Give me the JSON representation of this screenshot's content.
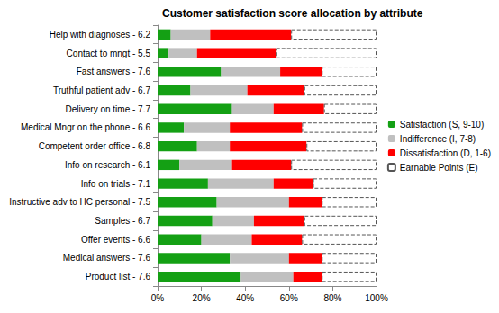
{
  "chart_data": {
    "type": "bar",
    "title": "Customer satisfaction score allocation by attribute",
    "orientation": "horizontal",
    "stacked": true,
    "grid": false,
    "legend": "right",
    "categories": [
      "Help with diagnoses - 6.2",
      "Contact to mngt - 5.5",
      "Fast answers - 7.6",
      "Truthful patient adv - 6.7",
      "Delivery on time - 7.7",
      "Medical Mngr on the phone - 6.6",
      "Competent order office - 6.8",
      "Info on research - 6.1",
      "Info on trials - 7.1",
      "Instructive adv to HC personal - 7.5",
      "Samples - 6.7",
      "Offer events - 6.6",
      "Medical answers - 7.6",
      "Product list - 7.6"
    ],
    "series": [
      {
        "name": "Satisfaction (S, 9-10)",
        "color": "#14a014",
        "values": [
          6,
          5,
          29,
          15,
          34,
          12,
          18,
          10,
          23,
          27,
          25,
          20,
          33,
          38
        ]
      },
      {
        "name": "Indifference (I, 7-8)",
        "color": "#c0c0c0",
        "values": [
          18,
          13,
          27,
          26,
          19,
          21,
          15,
          24,
          30,
          33,
          19,
          23,
          27,
          24
        ]
      },
      {
        "name": "Dissatisfaction (D, 1-6)",
        "color": "#ff0000",
        "values": [
          37,
          36,
          19,
          26,
          23,
          33,
          35,
          27,
          18,
          15,
          23,
          23,
          15,
          13
        ]
      },
      {
        "name": "Earnable Points (E)",
        "color": "#ffffff",
        "line_style": "dashed",
        "values": [
          39,
          46,
          25,
          33,
          24,
          34,
          32,
          39,
          29,
          25,
          33,
          34,
          25,
          25
        ]
      }
    ],
    "xlim": [
      0,
      100
    ],
    "xticks": [
      {
        "value": 0,
        "label": "0%"
      },
      {
        "value": 20,
        "label": "20%"
      },
      {
        "value": 40,
        "label": "40%"
      },
      {
        "value": 60,
        "label": "60%"
      },
      {
        "value": 80,
        "label": "80%"
      },
      {
        "value": 100,
        "label": "100%"
      }
    ]
  }
}
